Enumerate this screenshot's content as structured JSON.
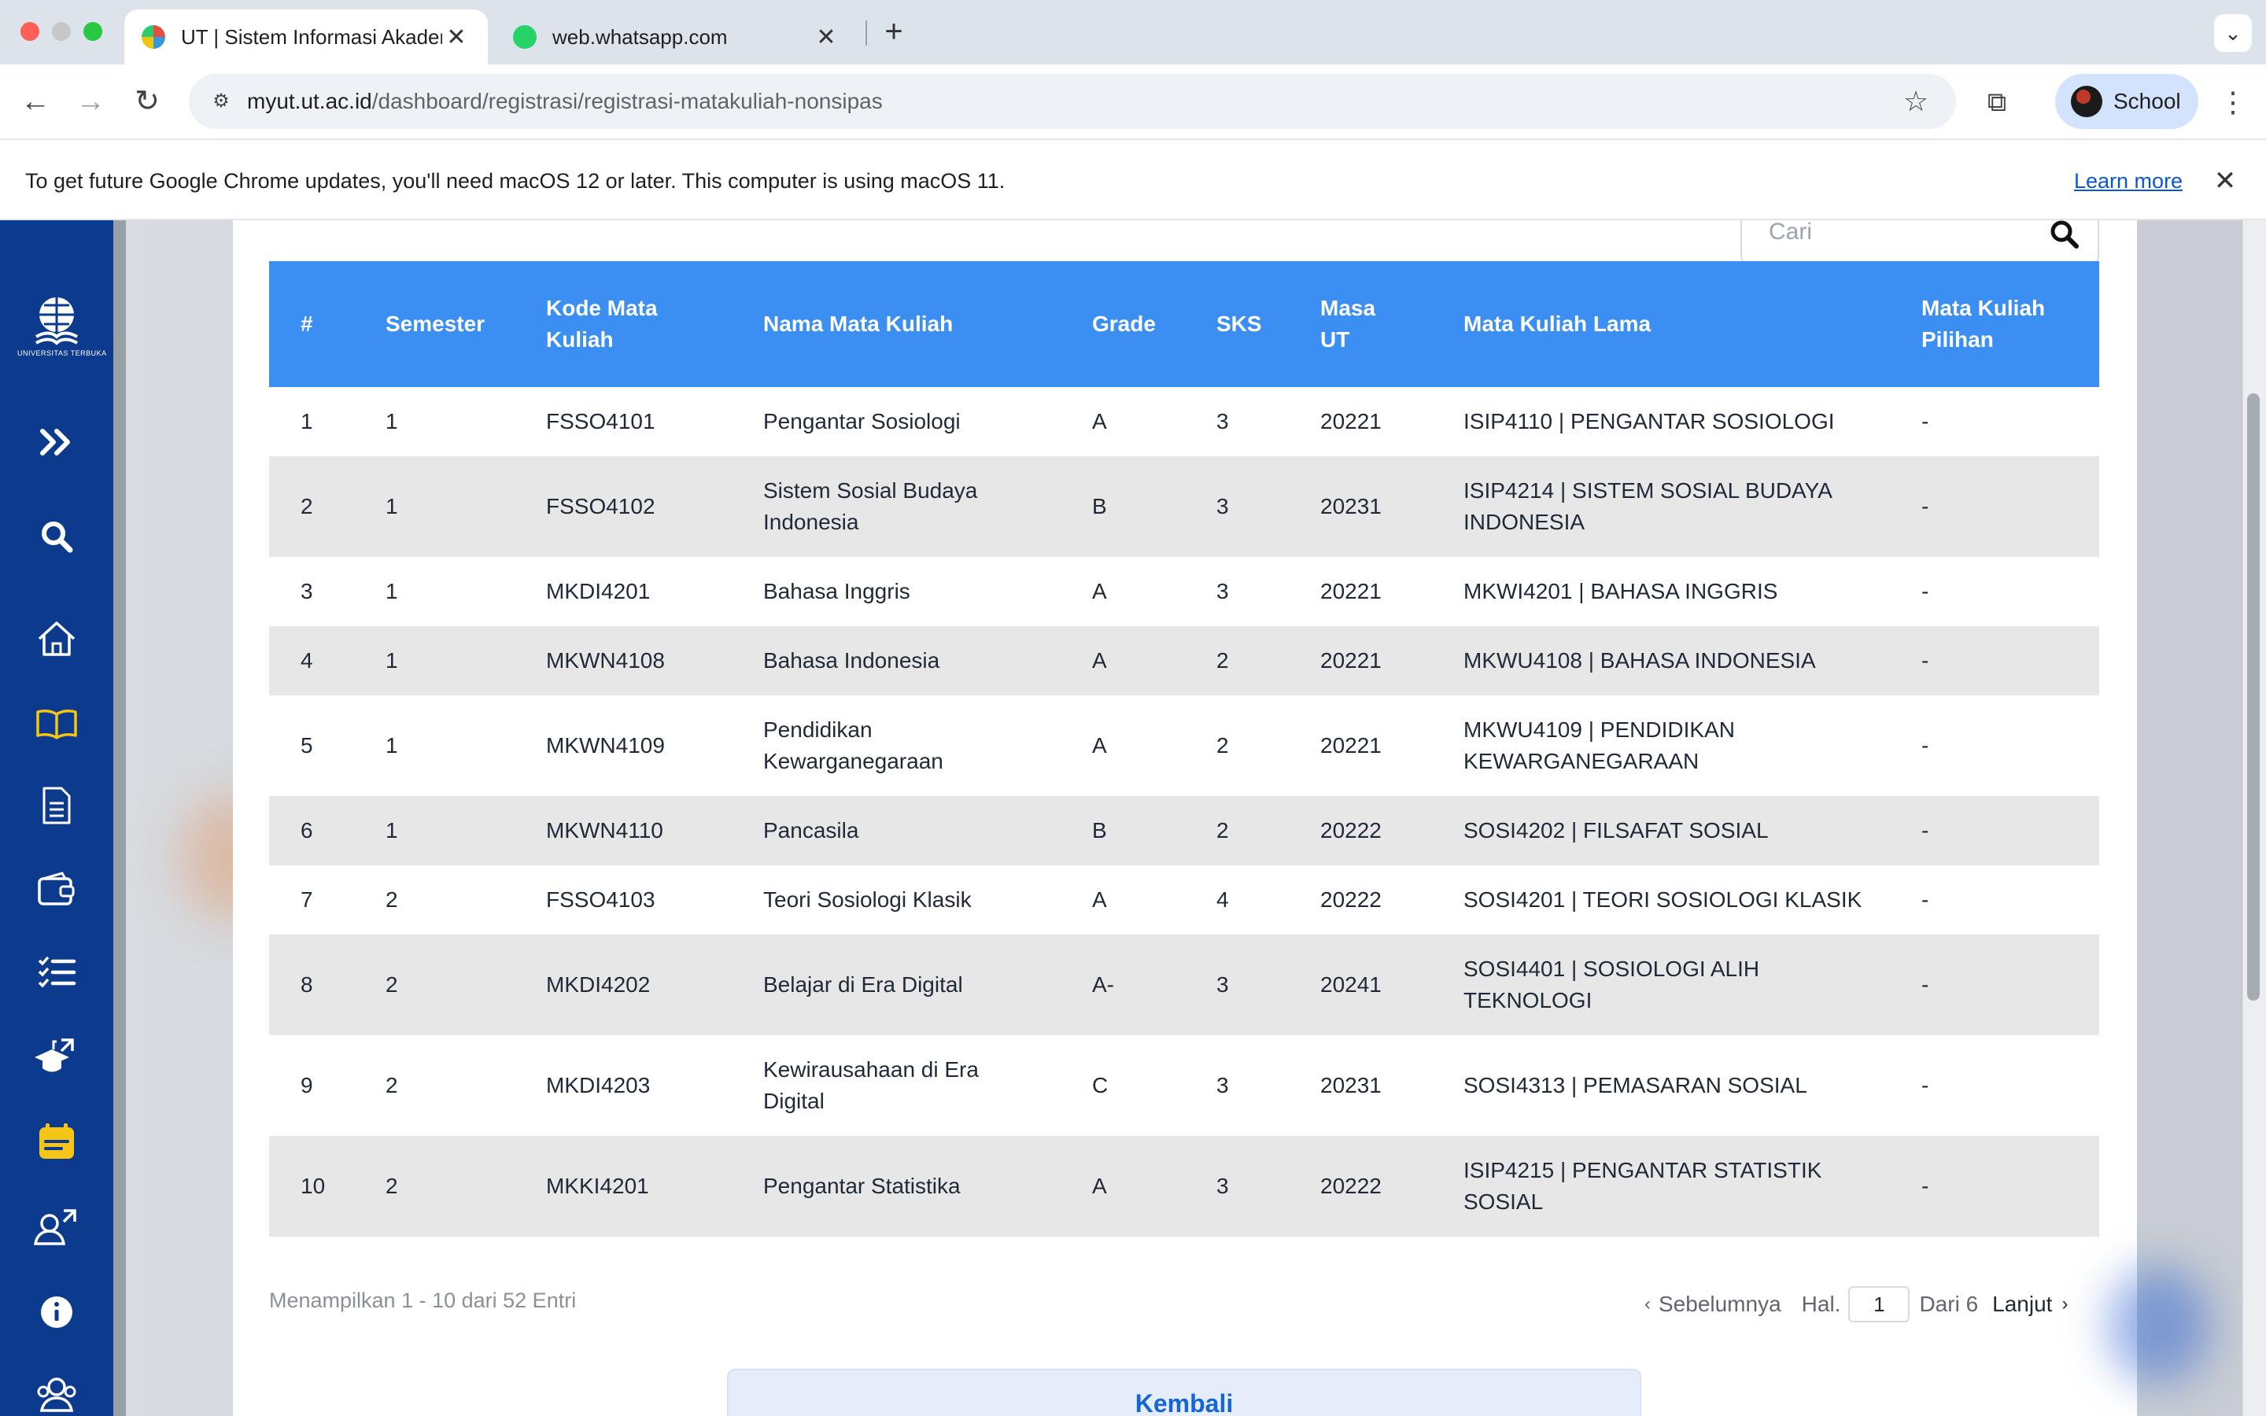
{
  "browser": {
    "tabs": [
      {
        "label": "UT | Sistem Informasi Akadem",
        "active": true
      },
      {
        "label": "web.whatsapp.com",
        "active": false
      }
    ],
    "url_host": "myut.ut.ac.id",
    "url_path": "/dashboard/registrasi/registrasi-matakuliah-nonsipas",
    "profile_label": "School",
    "update_message": "To get future Google Chrome updates, you'll need macOS 12 or later. This computer is using macOS 11.",
    "learn_more": "Learn more"
  },
  "sidebar": {
    "logo_text": "UNIVERSITAS TERBUKA",
    "icons": [
      "double-chevron-right-icon",
      "search-icon",
      "home-icon",
      "book-icon",
      "document-icon",
      "wallet-icon",
      "checklist-icon",
      "graduation-cap-external-icon",
      "calendar-icon",
      "users-external-icon",
      "info-icon",
      "user-group-icon"
    ]
  },
  "search": {
    "placeholder": "Cari"
  },
  "table": {
    "headers": {
      "no": "#",
      "semester": "Semester",
      "kode": "Kode Mata Kuliah",
      "nama": "Nama Mata Kuliah",
      "grade": "Grade",
      "sks": "SKS",
      "masa": "Masa UT",
      "lama": "Mata Kuliah Lama",
      "pilihan": "Mata Kuliah Pilihan"
    },
    "rows": [
      {
        "no": "1",
        "semester": "1",
        "kode": "FSSO4101",
        "nama": "Pengantar Sosiologi",
        "grade": "A",
        "sks": "3",
        "masa": "20221",
        "lama": "ISIP4110 | PENGANTAR SOSIOLOGI",
        "pilihan": "-"
      },
      {
        "no": "2",
        "semester": "1",
        "kode": "FSSO4102",
        "nama": "Sistem Sosial Budaya Indonesia",
        "grade": "B",
        "sks": "3",
        "masa": "20231",
        "lama": "ISIP4214 | SISTEM SOSIAL BUDAYA INDONESIA",
        "pilihan": "-"
      },
      {
        "no": "3",
        "semester": "1",
        "kode": "MKDI4201",
        "nama": "Bahasa Inggris",
        "grade": "A",
        "sks": "3",
        "masa": "20221",
        "lama": "MKWI4201 | BAHASA INGGRIS",
        "pilihan": "-"
      },
      {
        "no": "4",
        "semester": "1",
        "kode": "MKWN4108",
        "nama": "Bahasa Indonesia",
        "grade": "A",
        "sks": "2",
        "masa": "20221",
        "lama": "MKWU4108 | BAHASA INDONESIA",
        "pilihan": "-"
      },
      {
        "no": "5",
        "semester": "1",
        "kode": "MKWN4109",
        "nama": "Pendidikan Kewarganegaraan",
        "grade": "A",
        "sks": "2",
        "masa": "20221",
        "lama": "MKWU4109 | PENDIDIKAN KEWARGANEGARAAN",
        "pilihan": "-"
      },
      {
        "no": "6",
        "semester": "1",
        "kode": "MKWN4110",
        "nama": "Pancasila",
        "grade": "B",
        "sks": "2",
        "masa": "20222",
        "lama": "SOSI4202 | FILSAFAT SOSIAL",
        "pilihan": "-"
      },
      {
        "no": "7",
        "semester": "2",
        "kode": "FSSO4103",
        "nama": "Teori Sosiologi Klasik",
        "grade": "A",
        "sks": "4",
        "masa": "20222",
        "lama": "SOSI4201 | TEORI SOSIOLOGI KLASIK",
        "pilihan": "-"
      },
      {
        "no": "8",
        "semester": "2",
        "kode": "MKDI4202",
        "nama": "Belajar di Era Digital",
        "grade": "A-",
        "sks": "3",
        "masa": "20241",
        "lama": "SOSI4401 | SOSIOLOGI ALIH TEKNOLOGI",
        "pilihan": "-"
      },
      {
        "no": "9",
        "semester": "2",
        "kode": "MKDI4203",
        "nama": "Kewirausahaan di Era Digital",
        "grade": "C",
        "sks": "3",
        "masa": "20231",
        "lama": "SOSI4313 | PEMASARAN SOSIAL",
        "pilihan": "-"
      },
      {
        "no": "10",
        "semester": "2",
        "kode": "MKKI4201",
        "nama": "Pengantar Statistika",
        "grade": "A",
        "sks": "3",
        "masa": "20222",
        "lama": "ISIP4215 | PENGANTAR STATISTIK SOSIAL",
        "pilihan": "-"
      }
    ]
  },
  "footer": {
    "entries": "Menampilkan 1 - 10 dari 52 Entri",
    "prev": "Sebelumnya",
    "hal": "Hal.",
    "page": "1",
    "dari": "Dari 6",
    "next": "Lanjut",
    "back_button": "Kembali"
  },
  "colors": {
    "sidebar": "#0c3a8c",
    "table_header": "#3b8ff3",
    "row_alt": "#e7e7e8",
    "accent_yellow": "#f5c518"
  }
}
